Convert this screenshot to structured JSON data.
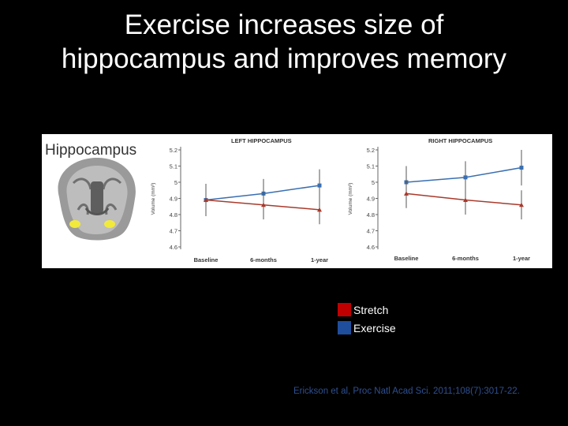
{
  "slide": {
    "title_line1": "Exercise increases size of",
    "title_line2": "hippocampus and improves memory",
    "citation": "Erickson et al, Proc Natl Acad Sci. 2011;108(7):3017-22."
  },
  "figure": {
    "brain_label": "Hippocampus"
  },
  "legend": [
    {
      "label": "Stretch",
      "color": "#c00000"
    },
    {
      "label": "Exercise",
      "color": "#1f4e9c"
    }
  ],
  "chart_data": [
    {
      "type": "line",
      "title": "LEFT HIPPOCAMPUS",
      "ylabel": "Volume (mm³)",
      "categories": [
        "Baseline",
        "6-months",
        "1-year"
      ],
      "yticks": [
        "5.2",
        "5.1",
        "5",
        "4.9",
        "4.8",
        "4.7",
        "4.6"
      ],
      "ylim": [
        4.6,
        5.2
      ],
      "series": [
        {
          "name": "Exercise",
          "values": [
            4.89,
            4.93,
            4.98
          ],
          "err": [
            0.08,
            0.09,
            0.1
          ],
          "color": "#3a6fb0"
        },
        {
          "name": "Stretch",
          "values": [
            4.89,
            4.86,
            4.83
          ],
          "err": [
            0.1,
            0.09,
            0.09
          ],
          "color": "#a83a2c"
        }
      ]
    },
    {
      "type": "line",
      "title": "RIGHT HIPPOCAMPUS",
      "ylabel": "Volume (mm³)",
      "categories": [
        "Baseline",
        "6-months",
        "1-year"
      ],
      "yticks": [
        "5.2",
        "5.1",
        "5",
        "4.9",
        "4.8",
        "4.7",
        "4.6"
      ],
      "ylim": [
        4.6,
        5.2
      ],
      "series": [
        {
          "name": "Exercise",
          "values": [
            5.0,
            5.03,
            5.09
          ],
          "err": [
            0.1,
            0.1,
            0.11
          ],
          "color": "#3a6fb0"
        },
        {
          "name": "Stretch",
          "values": [
            4.93,
            4.89,
            4.86
          ],
          "err": [
            0.09,
            0.09,
            0.09
          ],
          "color": "#a83a2c"
        }
      ]
    }
  ]
}
